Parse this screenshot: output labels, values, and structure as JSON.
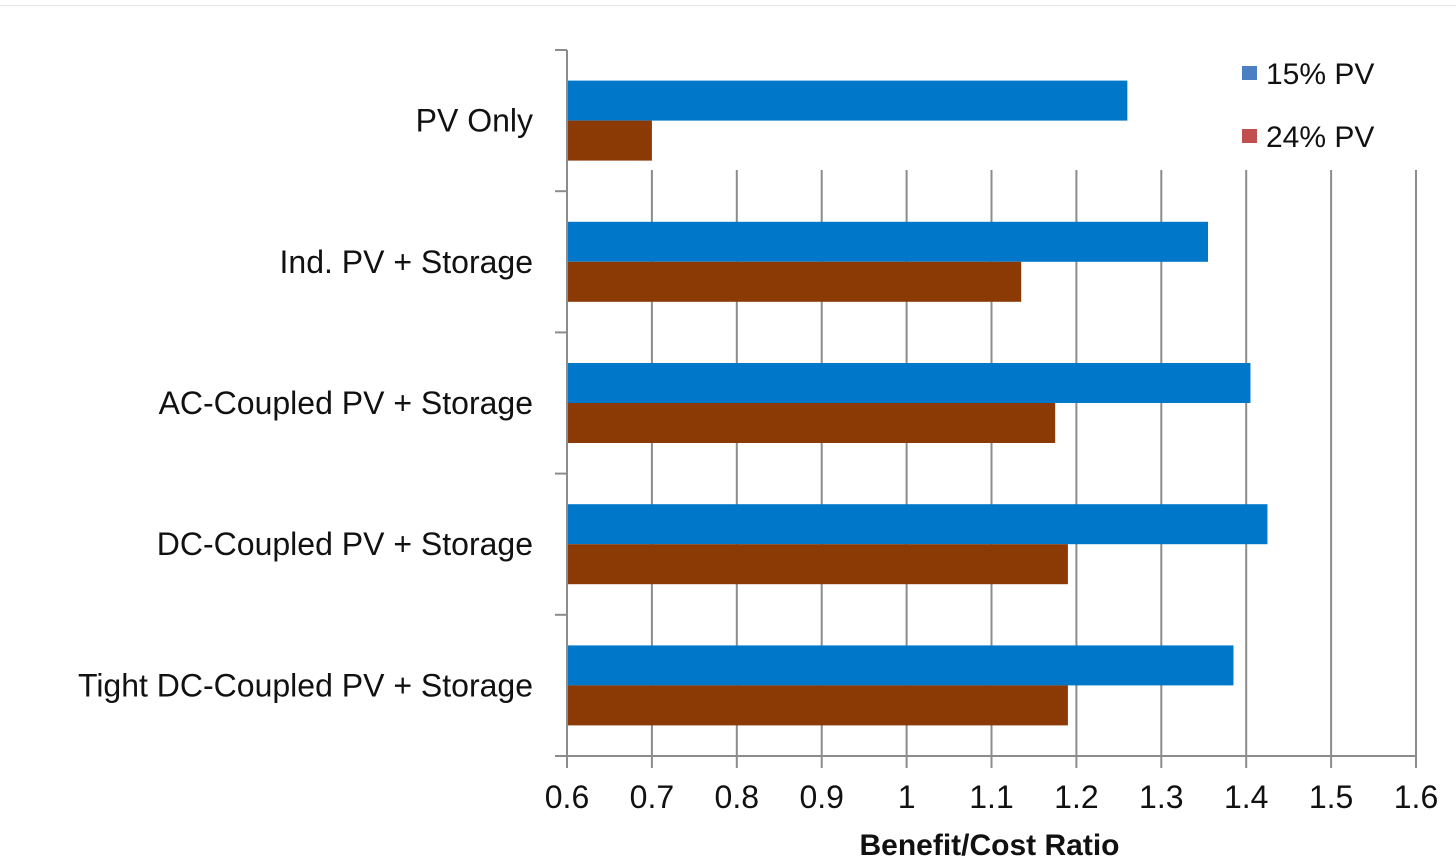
{
  "chart_data": {
    "type": "bar",
    "orientation": "horizontal",
    "title": "",
    "xlabel": "Benefit/Cost Ratio",
    "ylabel": "",
    "categories": [
      "PV Only",
      "Ind. PV + Storage",
      "AC-Coupled PV + Storage",
      "DC-Coupled PV + Storage",
      "Tight DC-Coupled PV + Storage"
    ],
    "series": [
      {
        "name": "15% PV",
        "color": "#0077c8",
        "legend_color": "#4a7fc1",
        "values": [
          1.26,
          1.355,
          1.405,
          1.425,
          1.385
        ]
      },
      {
        "name": "24% PV",
        "color": "#8b3a06",
        "legend_color": "#c0504d",
        "values": [
          0.7,
          1.135,
          1.175,
          1.19,
          1.19
        ]
      }
    ],
    "xlim": [
      0.6,
      1.6
    ],
    "xticks": [
      "0.6",
      "0.7",
      "0.8",
      "0.9",
      "1",
      "1.1",
      "1.2",
      "1.3",
      "1.4",
      "1.5",
      "1.6"
    ],
    "grid": "vertical",
    "legend_position": "top-right"
  }
}
